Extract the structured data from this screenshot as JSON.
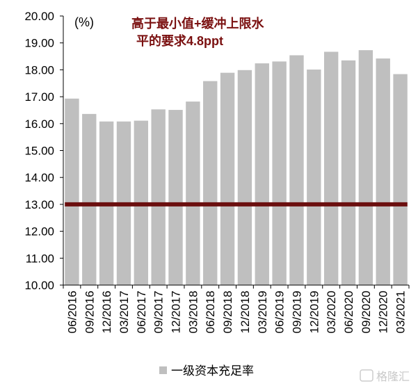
{
  "chart_data": {
    "type": "bar",
    "unit": "(%)",
    "categories": [
      "06/2016",
      "09/2016",
      "12/2016",
      "03/2017",
      "06/2017",
      "09/2017",
      "12/2017",
      "03/2018",
      "06/2018",
      "09/2018",
      "12/2018",
      "03/2019",
      "06/2019",
      "09/2019",
      "12/2019",
      "03/2020",
      "06/2020",
      "09/2020",
      "12/2020",
      "03/2021"
    ],
    "series": [
      {
        "name": "一级资本充足率",
        "color": "#bfbfbf",
        "values": [
          16.93,
          16.36,
          16.08,
          16.08,
          16.11,
          16.53,
          16.51,
          16.82,
          17.58,
          17.89,
          17.99,
          18.24,
          18.31,
          18.54,
          18.01,
          18.67,
          18.35,
          18.73,
          18.42,
          17.84
        ]
      }
    ],
    "reference_line": {
      "value": 13.0,
      "color": "#6b0f0f"
    },
    "ylim": [
      10,
      20
    ],
    "yticks": [
      "10.00",
      "11.00",
      "12.00",
      "13.00",
      "14.00",
      "15.00",
      "16.00",
      "17.00",
      "18.00",
      "19.00",
      "20.00"
    ],
    "annotation": [
      "高于最小值+缓冲上限水",
      "平的要求4.8ppt"
    ],
    "grid": false,
    "legend_position": "bottom"
  },
  "watermark": "格隆汇"
}
